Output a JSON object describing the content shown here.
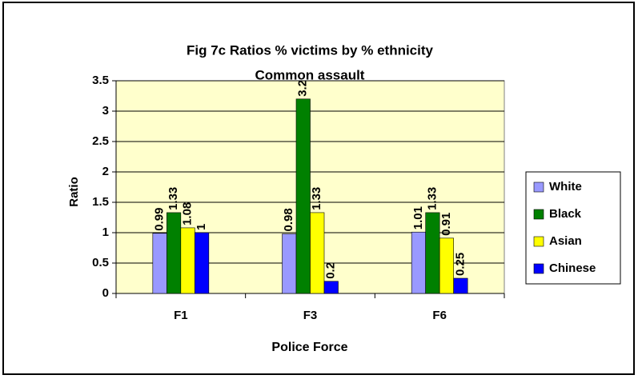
{
  "chart_data": {
    "type": "bar",
    "title": "Fig 7c  Ratios % victims by % ethnicity",
    "subtitle": "Common assault",
    "x_label": "Police Force",
    "y_label": "Ratio",
    "categories": [
      "F1",
      "F3",
      "F6"
    ],
    "series": [
      {
        "name": "White",
        "color": "#9999ff",
        "values": [
          0.99,
          0.98,
          1.01
        ]
      },
      {
        "name": "Black",
        "color": "#008000",
        "values": [
          1.33,
          3.2,
          1.33
        ]
      },
      {
        "name": "Asian",
        "color": "#ffff00",
        "values": [
          1.08,
          1.33,
          0.91
        ]
      },
      {
        "name": "Chinese",
        "color": "#0000ff",
        "values": [
          1,
          0.2,
          0.25
        ]
      }
    ],
    "ylim": [
      0,
      3.5
    ],
    "yticks": [
      0,
      0.5,
      1,
      1.5,
      2,
      2.5,
      3,
      3.5
    ],
    "grid": true,
    "legend": "right"
  }
}
